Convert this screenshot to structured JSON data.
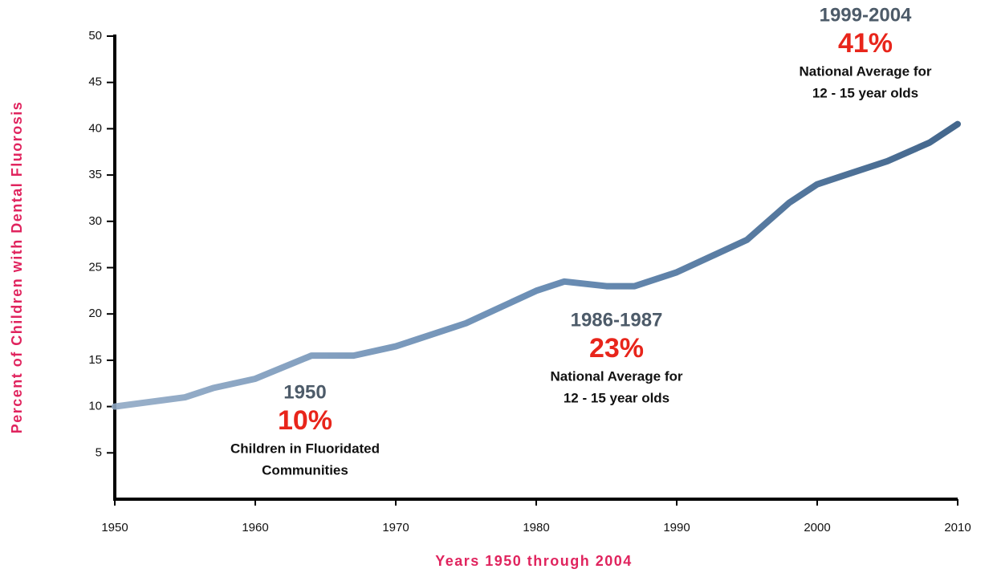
{
  "chart_data": {
    "type": "line",
    "y_label": "Percent of Children with Dental Fluorosis",
    "x_label": "Years 1950 through 2004",
    "x": [
      1950,
      1955,
      1957,
      1960,
      1964,
      1967,
      1970,
      1975,
      1980,
      1982,
      1985,
      1987,
      1990,
      1995,
      1998,
      2000,
      2002,
      2005,
      2008,
      2010
    ],
    "values": [
      10,
      11,
      12,
      13,
      15.5,
      15.5,
      16.5,
      19,
      22.5,
      23.5,
      23,
      23,
      24.5,
      28,
      32,
      34,
      35,
      36.5,
      38.5,
      40.5
    ],
    "color": "#5b82ad",
    "xlim": [
      1950,
      2010
    ],
    "xticks": [
      1950,
      1960,
      1970,
      1980,
      1990,
      2000,
      2010
    ],
    "ylim": [
      0,
      50
    ],
    "yticks": [
      5,
      10,
      15,
      20,
      25,
      30,
      35,
      40,
      45,
      50
    ],
    "annotations": [
      {
        "period": "1950",
        "percent": "10%",
        "lines": [
          "Children in Fluoridated",
          "Communities"
        ]
      },
      {
        "period": "1986-1987",
        "percent": "23%",
        "lines": [
          "National Average for",
          "12 - 15 year olds"
        ]
      },
      {
        "period": "1999-2004",
        "percent": "41%",
        "lines": [
          "National Average for",
          "12 - 15 year olds"
        ]
      }
    ]
  }
}
